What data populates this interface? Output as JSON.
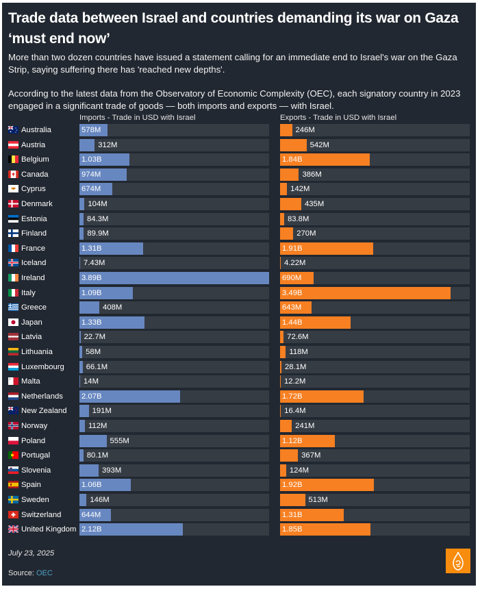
{
  "header": {
    "title": "Trade data between Israel and countries demanding its war on Gaza ‘must end now’",
    "paragraph1": "More than two dozen countries have issued a statement calling for an immediate end to Israel's war on the Gaza Strip, saying suffering there has 'reached new depths'.",
    "paragraph2": "According to the latest data from the Observatory of Economic Complexity (OEC), each signatory country in 2023 engaged in a significant trade of goods — both imports and exports — with Israel."
  },
  "footer": {
    "date": "July 23, 2025",
    "source_label": "Source: ",
    "source_link": "OEC",
    "logo_icon": "al-jazeera-logo-icon"
  },
  "colors": {
    "background": "#222831",
    "track": "#363c44",
    "imports": "#6787c0",
    "exports": "#f78022",
    "link": "#4aa3c8",
    "logo": "#f78c0f"
  },
  "chart_data": {
    "type": "bar",
    "orientation": "horizontal",
    "title": "Trade data between Israel and countries demanding its war on Gaza ‘must end now’",
    "unit": "USD",
    "xlim": [
      0,
      3890000000
    ],
    "grid": false,
    "categories": [
      "Australia",
      "Austria",
      "Belgium",
      "Canada",
      "Cyprus",
      "Denmark",
      "Estonia",
      "Finland",
      "France",
      "Iceland",
      "Ireland",
      "Italy",
      "Greece",
      "Japan",
      "Latvia",
      "Lithuania",
      "Luxembourg",
      "Malta",
      "Netherlands",
      "New Zealand",
      "Norway",
      "Poland",
      "Portugal",
      "Slovenia",
      "Spain",
      "Sweden",
      "Switzerland",
      "United Kingdom"
    ],
    "flag_icons": [
      "flag-australia-icon",
      "flag-austria-icon",
      "flag-belgium-icon",
      "flag-canada-icon",
      "flag-cyprus-icon",
      "flag-denmark-icon",
      "flag-estonia-icon",
      "flag-finland-icon",
      "flag-france-icon",
      "flag-iceland-icon",
      "flag-ireland-icon",
      "flag-italy-icon",
      "flag-greece-icon",
      "flag-japan-icon",
      "flag-latvia-icon",
      "flag-lithuania-icon",
      "flag-luxembourg-icon",
      "flag-malta-icon",
      "flag-netherlands-icon",
      "flag-new-zealand-icon",
      "flag-norway-icon",
      "flag-poland-icon",
      "flag-portugal-icon",
      "flag-slovenia-icon",
      "flag-spain-icon",
      "flag-sweden-icon",
      "flag-switzerland-icon",
      "flag-united-kingdom-icon"
    ],
    "series": [
      {
        "name": "Imports - Trade in USD with Israel",
        "color": "#6787c0",
        "values": [
          578000000,
          312000000,
          1030000000,
          974000000,
          674000000,
          104000000,
          84300000,
          89900000,
          1310000000,
          7430000,
          3890000000,
          1090000000,
          408000000,
          1330000000,
          22700000,
          58000000,
          66100000,
          14000000,
          2070000000,
          191000000,
          112000000,
          555000000,
          80100000,
          393000000,
          1060000000,
          146000000,
          644000000,
          2120000000
        ],
        "labels": [
          "578M",
          "312M",
          "1.03B",
          "974M",
          "674M",
          "104M",
          "84.3M",
          "89.9M",
          "1.31B",
          "7.43M",
          "3.89B",
          "1.09B",
          "408M",
          "1.33B",
          "22.7M",
          "58M",
          "66.1M",
          "14M",
          "2.07B",
          "191M",
          "112M",
          "555M",
          "80.1M",
          "393M",
          "1.06B",
          "146M",
          "644M",
          "2.12B"
        ]
      },
      {
        "name": "Exports - Trade in USD with Israel",
        "color": "#f78022",
        "values": [
          246000000,
          542000000,
          1840000000,
          386000000,
          142000000,
          435000000,
          83800000,
          270000000,
          1910000000,
          4220000,
          690000000,
          3490000000,
          643000000,
          1440000000,
          72600000,
          118000000,
          28100000,
          12200000,
          1720000000,
          16400000,
          241000000,
          1120000000,
          367000000,
          124000000,
          1920000000,
          513000000,
          1310000000,
          1850000000
        ],
        "labels": [
          "246M",
          "542M",
          "1.84B",
          "386M",
          "142M",
          "435M",
          "83.8M",
          "270M",
          "1.91B",
          "4.22M",
          "690M",
          "3.49B",
          "643M",
          "1.44B",
          "72.6M",
          "118M",
          "28.1M",
          "12.2M",
          "1.72B",
          "16.4M",
          "241M",
          "1.12B",
          "367M",
          "124M",
          "1.92B",
          "513M",
          "1.31B",
          "1.85B"
        ]
      }
    ]
  }
}
